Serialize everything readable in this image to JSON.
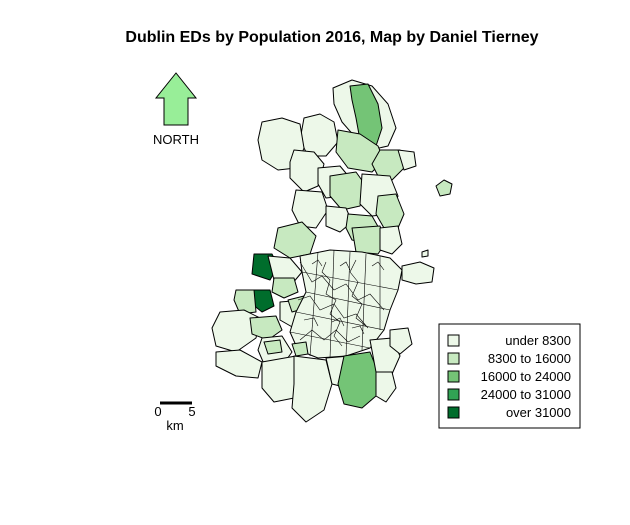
{
  "title": "Dublin EDs by Population 2016, Map by Daniel Tierney",
  "north_arrow": {
    "label": "NORTH",
    "fill": "#98ee98"
  },
  "scale_bar": {
    "start_label": "0",
    "end_label": "5",
    "unit_label": "km"
  },
  "legend": {
    "items": [
      {
        "label": "under 8300",
        "color": "#edf8e9"
      },
      {
        "label": "8300 to 16000",
        "color": "#c7e9c0"
      },
      {
        "label": "16000 to 24000",
        "color": "#74c476"
      },
      {
        "label": "24000 to 31000",
        "color": "#31a354"
      },
      {
        "label": "over 31000",
        "color": "#006d2c"
      }
    ]
  },
  "colors": {
    "class1": "#edf8e9",
    "class2": "#c7e9c0",
    "class3": "#74c476",
    "class4": "#31a354",
    "class5": "#006d2c",
    "outline": "#000000",
    "background": "#ffffff"
  }
}
